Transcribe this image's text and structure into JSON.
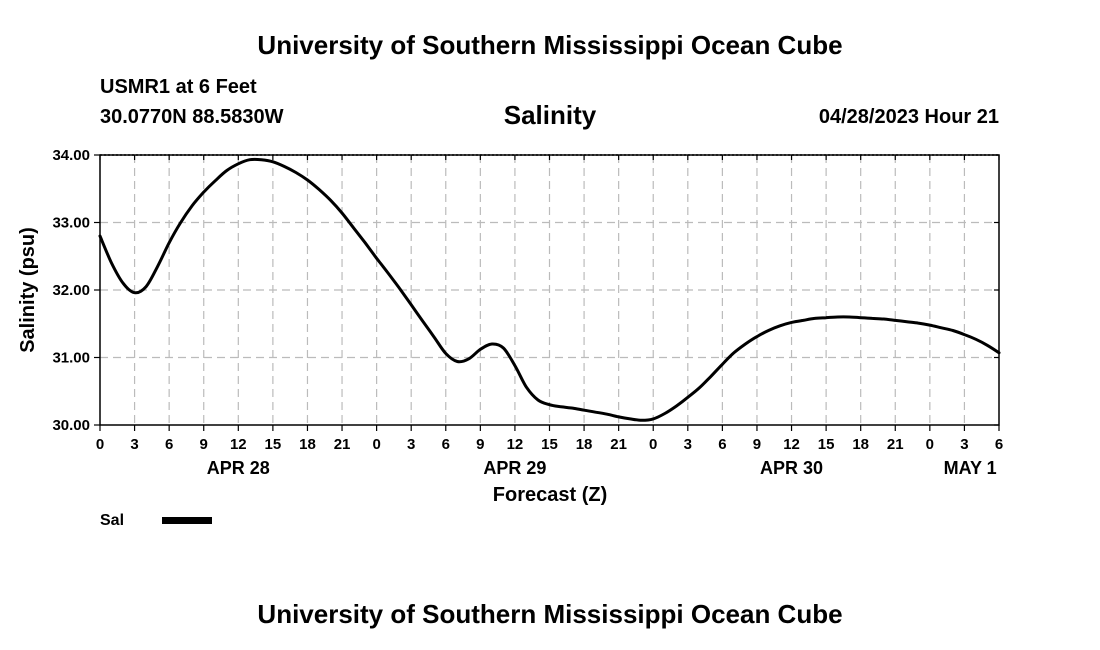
{
  "header": {
    "title": "University of Southern Mississippi Ocean Cube",
    "station": "USMR1 at 6 Feet",
    "coordinates": "30.0770N  88.5830W",
    "variable_title": "Salinity",
    "datetime": "04/28/2023 Hour 21"
  },
  "footer": {
    "title": "University of Southern Mississippi Ocean Cube"
  },
  "colors": {
    "line": "#000000",
    "grid": "#bbbbbb",
    "background": "#ffffff"
  },
  "chart_data": {
    "type": "line",
    "title": "Salinity",
    "xlabel": "Forecast (Z)",
    "ylabel": "Salinity (psu)",
    "xlim": [
      0,
      78
    ],
    "ylim": [
      30.0,
      34.0
    ],
    "ytick_values": [
      30,
      31,
      32,
      33,
      34
    ],
    "ytick_labels": [
      "30.00",
      "31.00",
      "32.00",
      "33.00",
      "34.00"
    ],
    "xtick_hours": [
      0,
      3,
      6,
      9,
      12,
      15,
      18,
      21,
      24,
      27,
      30,
      33,
      36,
      39,
      42,
      45,
      48,
      51,
      54,
      57,
      60,
      63,
      66,
      69,
      72,
      75,
      78
    ],
    "xtick_labels": [
      "0",
      "3",
      "6",
      "9",
      "12",
      "15",
      "18",
      "21",
      "0",
      "3",
      "6",
      "9",
      "12",
      "15",
      "18",
      "21",
      "0",
      "3",
      "6",
      "9",
      "12",
      "15",
      "18",
      "21",
      "0",
      "3",
      "6"
    ],
    "date_labels": [
      {
        "label": "APR 28",
        "hour": 12
      },
      {
        "label": "APR 29",
        "hour": 36
      },
      {
        "label": "APR 30",
        "hour": 60
      },
      {
        "label": "MAY 1",
        "hour": 75.5
      }
    ],
    "grid": true,
    "series": [
      {
        "name": "Sal",
        "x": [
          0,
          1,
          2,
          3,
          4,
          5,
          6,
          7,
          8,
          9,
          10,
          11,
          12,
          13,
          14,
          15,
          16,
          17,
          18,
          19,
          20,
          21,
          22,
          23,
          24,
          25,
          26,
          27,
          28,
          29,
          30,
          31,
          32,
          33,
          34,
          35,
          36,
          37,
          38,
          39,
          40,
          41,
          42,
          43,
          44,
          45,
          46,
          47,
          48,
          49,
          50,
          51,
          52,
          53,
          54,
          55,
          56,
          57,
          58,
          59,
          60,
          61,
          62,
          63,
          64,
          65,
          66,
          67,
          68,
          69,
          70,
          71,
          72,
          73,
          74,
          75,
          76,
          77,
          78
        ],
        "values": [
          32.8,
          32.4,
          32.1,
          31.96,
          32.05,
          32.35,
          32.7,
          33.0,
          33.25,
          33.45,
          33.62,
          33.77,
          33.87,
          33.93,
          33.93,
          33.9,
          33.83,
          33.74,
          33.63,
          33.49,
          33.33,
          33.14,
          32.92,
          32.7,
          32.47,
          32.25,
          32.02,
          31.78,
          31.54,
          31.3,
          31.06,
          30.94,
          30.98,
          31.12,
          31.2,
          31.14,
          30.88,
          30.56,
          30.37,
          30.3,
          30.27,
          30.25,
          30.22,
          30.19,
          30.16,
          30.12,
          30.09,
          30.07,
          30.09,
          30.17,
          30.28,
          30.41,
          30.55,
          30.72,
          30.9,
          31.07,
          31.2,
          31.31,
          31.4,
          31.47,
          31.52,
          31.55,
          31.58,
          31.59,
          31.6,
          31.6,
          31.59,
          31.58,
          31.57,
          31.55,
          31.53,
          31.51,
          31.48,
          31.44,
          31.4,
          31.34,
          31.27,
          31.18,
          31.07
        ]
      }
    ],
    "legend": "bottom-left"
  }
}
